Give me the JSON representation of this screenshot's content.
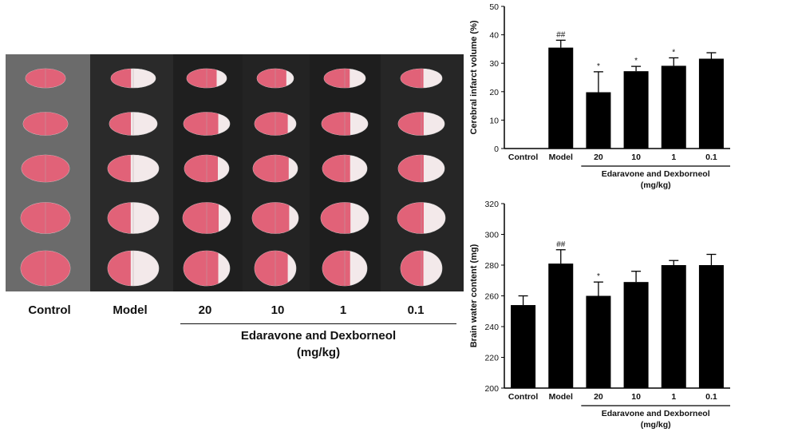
{
  "photo_panel": {
    "columns": [
      "Control",
      "Model",
      "20",
      "10",
      "1",
      "0.1"
    ],
    "group_label_line1": "Edaravone and Dexborneol",
    "group_label_line2": "(mg/kg)"
  },
  "colors": {
    "bar": "#000000",
    "photo_background": "#1c1c1c",
    "tissue_red": "#e0566e",
    "tissue_pale": "#f3e9ea"
  },
  "chart_data": [
    {
      "type": "bar",
      "categories": [
        "Control",
        "Model",
        "20",
        "10",
        "1",
        "0.1"
      ],
      "values": [
        0,
        35.5,
        19.8,
        27.2,
        29.1,
        31.6
      ],
      "errors": [
        0,
        2.6,
        7.2,
        1.7,
        2.8,
        2.1
      ],
      "annotations": [
        "",
        "##",
        "*",
        "*",
        "*",
        ""
      ],
      "ylabel": "Cerebral infarct volume (%)",
      "ylim": [
        0,
        50
      ],
      "yticks": [
        "0",
        "10",
        "20",
        "30",
        "40",
        "50"
      ],
      "group_label_line1": "Edaravone and Dexborneol",
      "group_label_line2": "(mg/kg)",
      "grid": false
    },
    {
      "type": "bar",
      "categories": [
        "Control",
        "Model",
        "20",
        "10",
        "1",
        "0.1"
      ],
      "values": [
        254,
        281,
        260,
        269,
        280,
        280
      ],
      "errors": [
        6,
        9,
        9,
        7,
        3,
        7
      ],
      "annotations": [
        "",
        "##",
        "*",
        "",
        "",
        ""
      ],
      "ylabel": "Brain water content (mg)",
      "ylim": [
        200,
        320
      ],
      "yticks": [
        "200",
        "220",
        "240",
        "260",
        "280",
        "300",
        "320"
      ],
      "group_label_line1": "Edaravone and Dexborneol",
      "group_label_line2": "(mg/kg)",
      "grid": false
    }
  ]
}
